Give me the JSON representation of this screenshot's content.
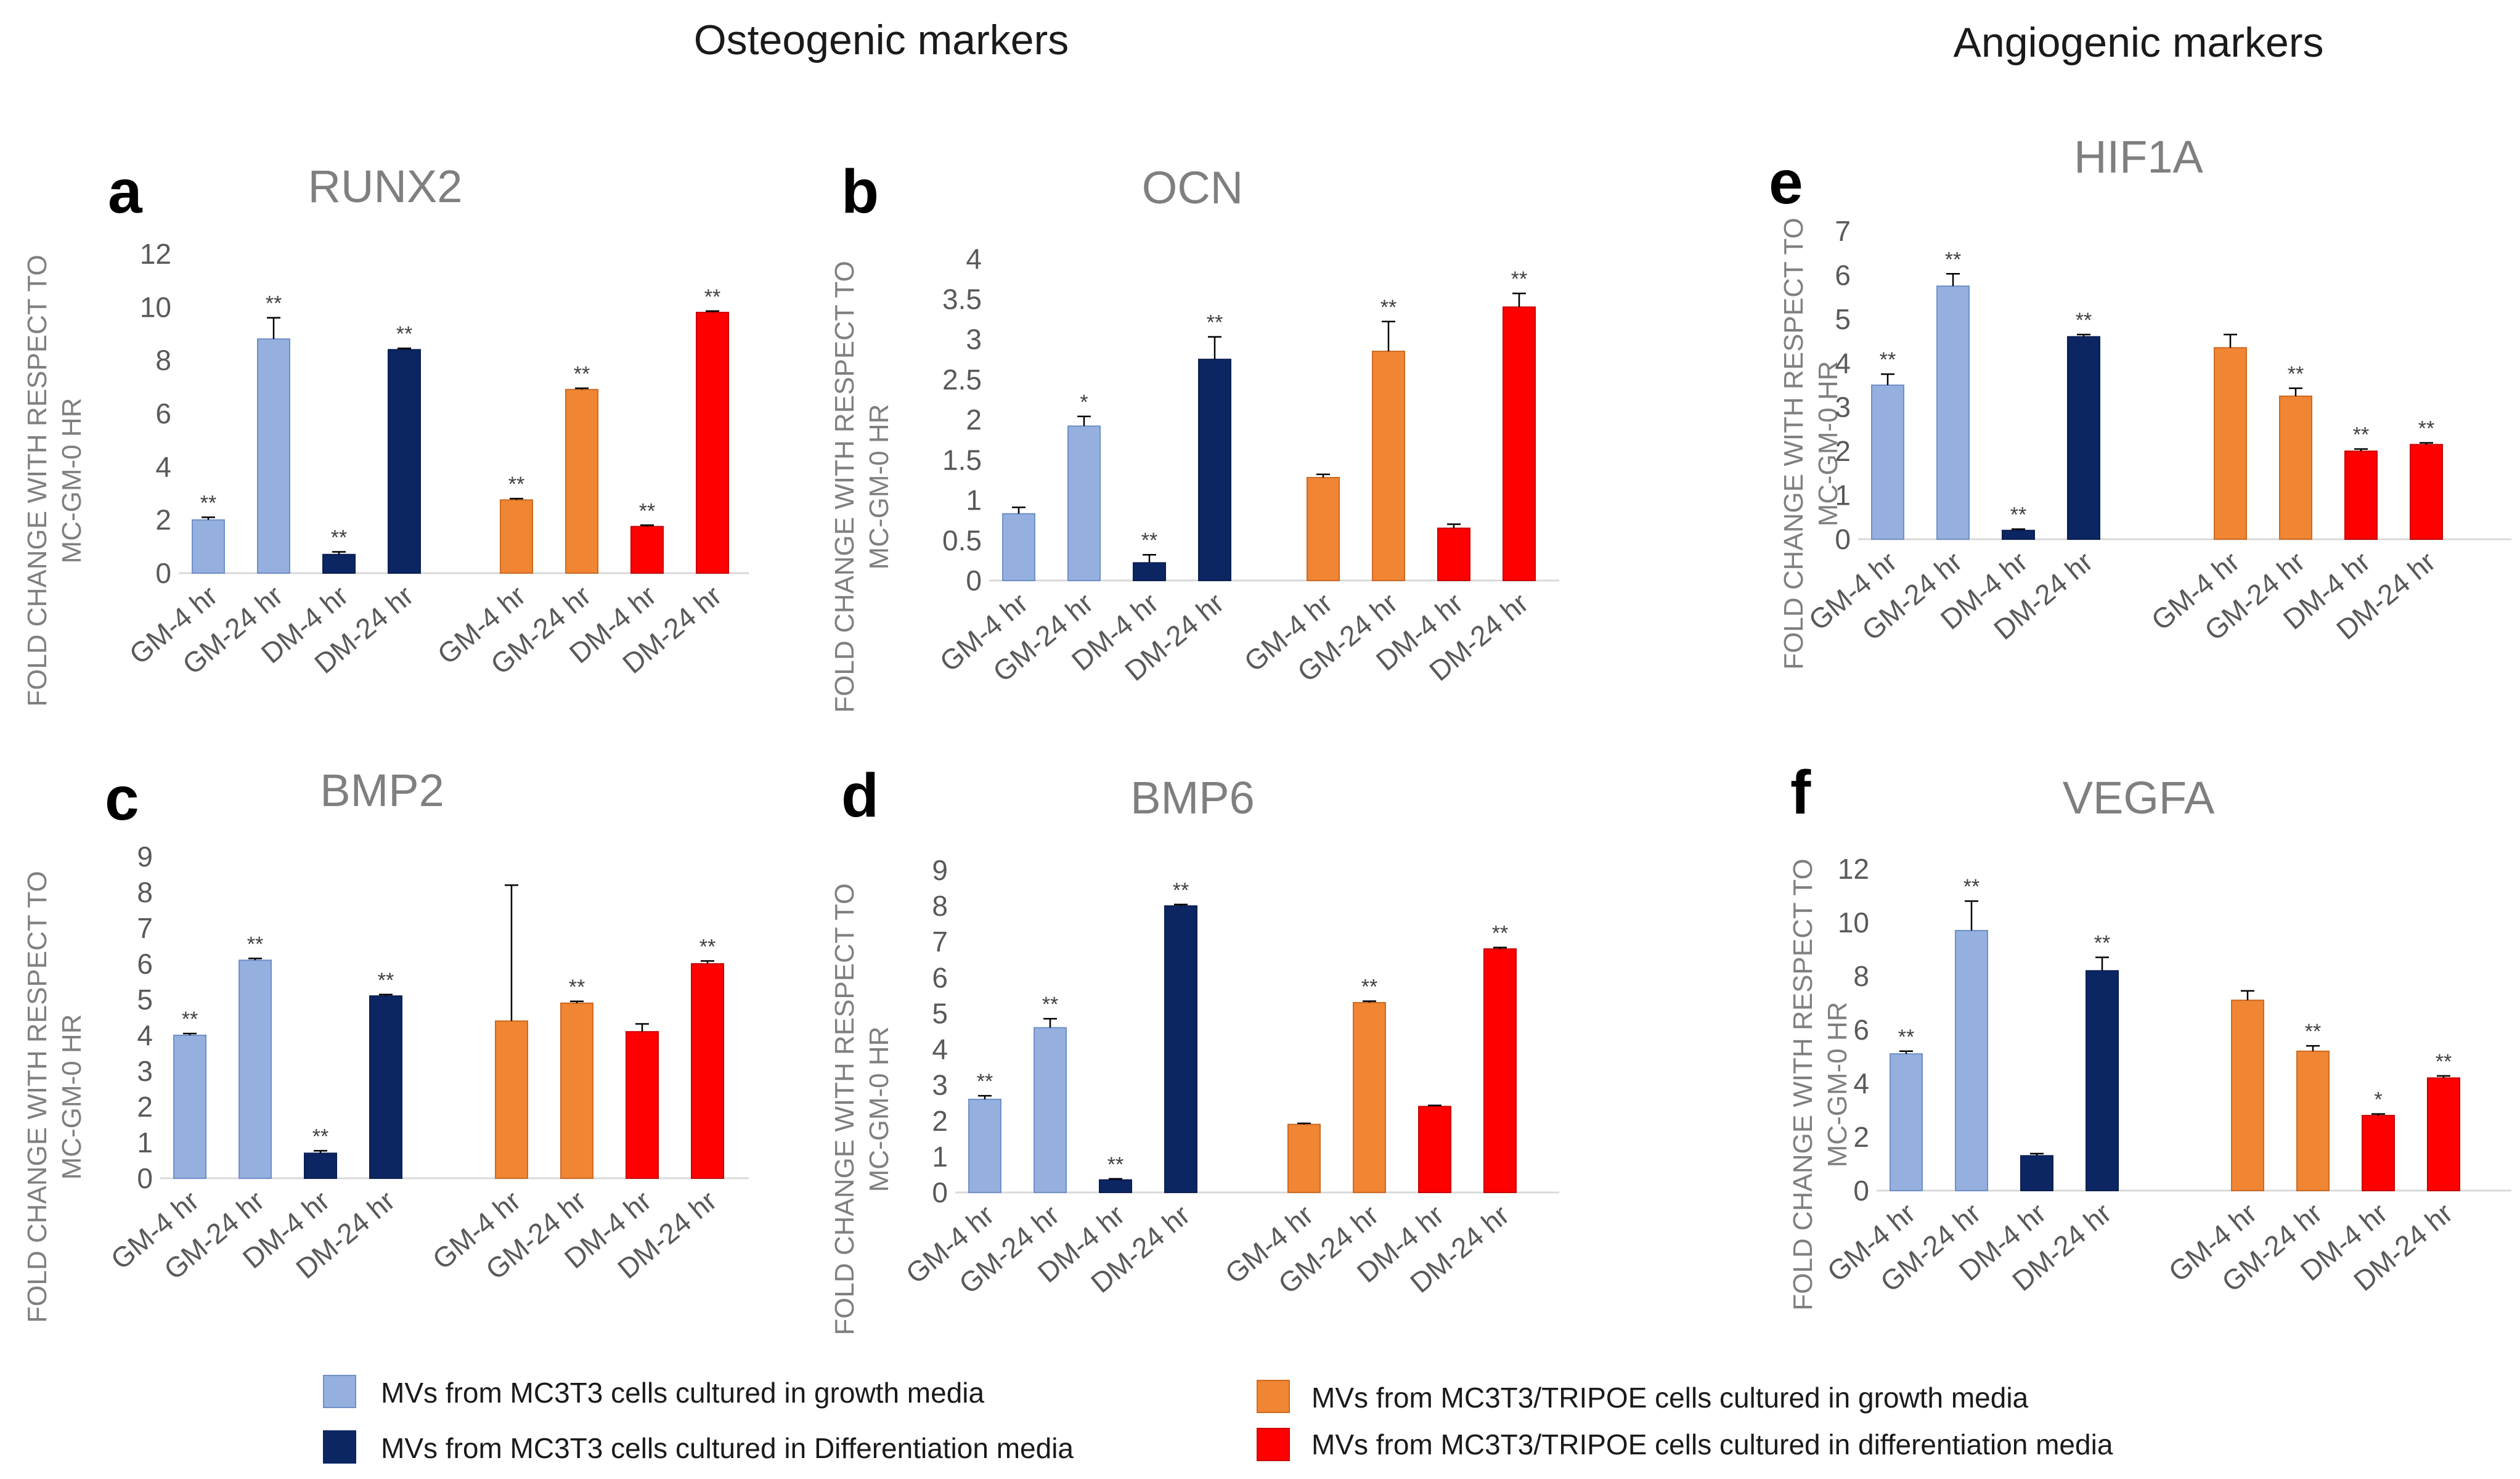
{
  "header": {
    "left_title": "Osteogenic markers",
    "right_title": "Angiogenic markers"
  },
  "colors": {
    "gm_mc3t3": "#95b0df",
    "dm_mc3t3": "#0c2663",
    "gm_tripoe": "#f08533",
    "dm_tripoe": "#ff0000"
  },
  "legend": {
    "items": [
      "MVs from MC3T3 cells cultured in growth media",
      "MVs from MC3T3 cells cultured in Differentiation media",
      "MVs from MC3T3/TRIPOE cells cultured in growth media",
      "MVs from MC3T3/TRIPOE cells cultured in differentiation media"
    ]
  },
  "chart_data": [
    {
      "type": "bar",
      "panel": "a",
      "title": "RUNX2",
      "ylabel_line1": "FOLD CHANGE WITH RESPECT TO",
      "ylabel_line2": "MC-GM-0 HR",
      "ylim": [
        0,
        12
      ],
      "yticks": [
        "0",
        "2",
        "4",
        "6",
        "8",
        "10",
        "12"
      ],
      "categories": [
        "GM-4 hr",
        "GM-24 hr",
        "DM-4 hr",
        "DM-24 hr",
        "GM-4 hr",
        "GM-24 hr",
        "DM-4 hr",
        "DM-24 hr"
      ],
      "values": [
        2.0,
        8.8,
        0.7,
        8.4,
        2.75,
        6.9,
        1.75,
        9.8
      ],
      "errors": [
        0.1,
        0.8,
        0.1,
        0.05,
        0.05,
        0.05,
        0.05,
        0.05
      ],
      "significance": [
        "**",
        "**",
        "**",
        "**",
        "**",
        "**",
        "**",
        "**"
      ]
    },
    {
      "type": "bar",
      "panel": "b",
      "title": "OCN",
      "ylabel_line1": "FOLD CHANGE WITH RESPECT TO",
      "ylabel_line2": "MC-GM-0 HR",
      "ylim": [
        0,
        4
      ],
      "yticks": [
        "0",
        "0.5",
        "1",
        "1.5",
        "2",
        "2.5",
        "3",
        "3.5",
        "4"
      ],
      "categories": [
        "GM-4 hr",
        "GM-24 hr",
        "DM-4 hr",
        "DM-24 hr",
        "GM-4 hr",
        "GM-24 hr",
        "DM-4 hr",
        "DM-24 hr"
      ],
      "values": [
        0.83,
        1.92,
        0.22,
        2.75,
        1.28,
        2.85,
        0.65,
        3.4
      ],
      "errors": [
        0.08,
        0.12,
        0.1,
        0.28,
        0.04,
        0.37,
        0.05,
        0.17
      ],
      "significance": [
        "",
        "*",
        "**",
        "**",
        "",
        "**",
        "",
        "**"
      ]
    },
    {
      "type": "bar",
      "panel": "c",
      "title": "BMP2",
      "ylabel_line1": "FOLD CHANGE WITH RESPECT TO",
      "ylabel_line2": "MC-GM-0 HR",
      "ylim": [
        0,
        9
      ],
      "yticks": [
        "0",
        "1",
        "2",
        "3",
        "4",
        "5",
        "6",
        "7",
        "8",
        "9"
      ],
      "categories": [
        "GM-4 hr",
        "GM-24 hr",
        "DM-4 hr",
        "DM-24 hr",
        "GM-4 hr",
        "GM-24 hr",
        "DM-4 hr",
        "DM-24 hr"
      ],
      "values": [
        4.0,
        6.1,
        0.7,
        5.1,
        4.4,
        4.9,
        4.1,
        6.0
      ],
      "errors": [
        0.05,
        0.05,
        0.07,
        0.04,
        3.8,
        0.05,
        0.22,
        0.08
      ],
      "significance": [
        "**",
        "**",
        "**",
        "**",
        "",
        "**",
        "",
        "**"
      ]
    },
    {
      "type": "bar",
      "panel": "d",
      "title": "BMP6",
      "ylabel_line1": "FOLD CHANGE WITH RESPECT TO",
      "ylabel_line2": "MC-GM-0 HR",
      "ylim": [
        0,
        9
      ],
      "yticks": [
        "0",
        "1",
        "2",
        "3",
        "4",
        "5",
        "6",
        "7",
        "8",
        "9"
      ],
      "categories": [
        "GM-4 hr",
        "GM-24 hr",
        "DM-4 hr",
        "DM-24 hr",
        "GM-4 hr",
        "GM-24 hr",
        "DM-4 hr",
        "DM-24 hr"
      ],
      "values": [
        2.6,
        4.6,
        0.35,
        8.0,
        1.9,
        5.3,
        2.4,
        6.8
      ],
      "errors": [
        0.1,
        0.25,
        0.03,
        0.04,
        0.03,
        0.04,
        0.03,
        0.04
      ],
      "significance": [
        "**",
        "**",
        "**",
        "**",
        "",
        "**",
        "",
        "**"
      ]
    },
    {
      "type": "bar",
      "panel": "e",
      "title": "HIF1A",
      "ylabel_line1": "FOLD CHANGE WITH RESPECT TO",
      "ylabel_line2": "MC-GM-0 HR",
      "ylim": [
        0,
        7
      ],
      "yticks": [
        "0",
        "1",
        "2",
        "3",
        "4",
        "5",
        "6",
        "7"
      ],
      "categories": [
        "GM-4 hr",
        "GM-24 hr",
        "DM-4 hr",
        "DM-24 hr",
        "GM-4 hr",
        "GM-24 hr",
        "DM-4 hr",
        "DM-24 hr"
      ],
      "values": [
        3.5,
        5.75,
        0.2,
        4.6,
        4.35,
        3.25,
        2.0,
        2.15
      ],
      "errors": [
        0.25,
        0.28,
        0.03,
        0.05,
        0.3,
        0.18,
        0.05,
        0.04
      ],
      "significance": [
        "**",
        "**",
        "**",
        "**",
        "",
        "**",
        "**",
        "**"
      ]
    },
    {
      "type": "bar",
      "panel": "f",
      "title": "VEGFA",
      "ylabel_line1": "FOLD CHANGE WITH RESPECT TO",
      "ylabel_line2": "MC-GM-0 HR",
      "ylim": [
        0,
        12
      ],
      "yticks": [
        "0",
        "2",
        "4",
        "6",
        "8",
        "10",
        "12"
      ],
      "categories": [
        "GM-4 hr",
        "GM-24 hr",
        "DM-4 hr",
        "DM-24 hr",
        "GM-4 hr",
        "GM-24 hr",
        "DM-4 hr",
        "DM-24 hr"
      ],
      "values": [
        5.1,
        9.7,
        1.3,
        8.2,
        7.1,
        5.2,
        2.8,
        4.2
      ],
      "errors": [
        0.1,
        1.1,
        0.08,
        0.5,
        0.35,
        0.2,
        0.06,
        0.08
      ],
      "significance": [
        "**",
        "**",
        "",
        "**",
        "",
        "**",
        "*",
        "**"
      ]
    }
  ]
}
